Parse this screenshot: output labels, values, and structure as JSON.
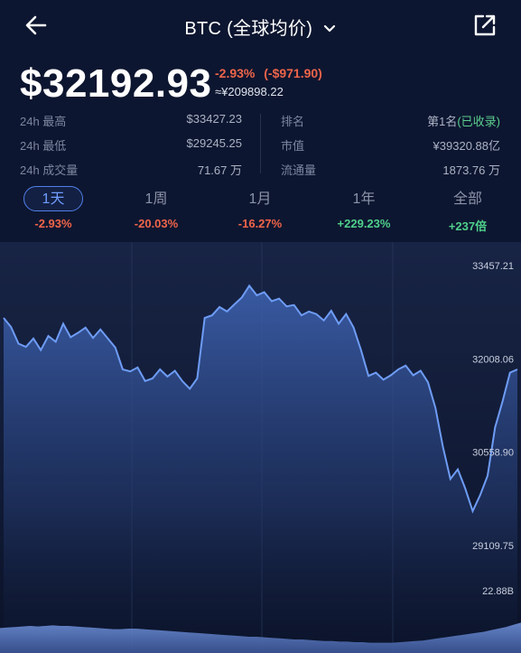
{
  "header": {
    "title": "BTC (全球均价)",
    "back_icon": "arrow-left-icon",
    "dropdown_icon": "chevron-down-icon",
    "share_icon": "external-link-icon"
  },
  "price": {
    "value": "$32192.93",
    "change_pct": "-2.93%",
    "change_abs": "(-$971.90)",
    "cny": "≈¥209898.22"
  },
  "stats": {
    "left": [
      {
        "label": "24h 最高",
        "value": "$33427.23"
      },
      {
        "label": "24h 最低",
        "value": "$29245.25"
      },
      {
        "label": "24h 成交量",
        "value": "71.67 万"
      }
    ],
    "right": [
      {
        "label": "排名",
        "value": "第1名",
        "extra": "(已收录)"
      },
      {
        "label": "市值",
        "value": "¥39320.88亿"
      },
      {
        "label": "流通量",
        "value": "1873.76 万"
      }
    ]
  },
  "tabs": [
    {
      "label": "1天",
      "change": "-2.93%",
      "direction": "neg",
      "active": true
    },
    {
      "label": "1周",
      "change": "-20.03%",
      "direction": "neg",
      "active": false
    },
    {
      "label": "1月",
      "change": "-16.27%",
      "direction": "neg",
      "active": false
    },
    {
      "label": "1年",
      "change": "+229.23%",
      "direction": "pos",
      "active": false
    },
    {
      "label": "全部",
      "change": "+237倍",
      "direction": "pos",
      "active": false
    }
  ],
  "colors": {
    "background": "#0d1630",
    "negative": "#f0654a",
    "positive": "#4fd08b",
    "accent": "#4f7fe8",
    "line": "#6e9cf5"
  },
  "chart_data": {
    "type": "area",
    "y_ticks": [
      "33457.21",
      "32008.06",
      "30558.90",
      "29109.75"
    ],
    "ylim": [
      29109.75,
      33457.21
    ],
    "volume_label": "22.88B",
    "series": [
      {
        "values": [
          32700,
          32560,
          32300,
          32250,
          32380,
          32200,
          32420,
          32330,
          32610,
          32400,
          32470,
          32550,
          32390,
          32520,
          32380,
          32240,
          31900,
          31870,
          31930,
          31720,
          31760,
          31900,
          31790,
          31880,
          31720,
          31600,
          31760,
          32700,
          32740,
          32870,
          32800,
          32910,
          33020,
          33200,
          33050,
          33100,
          32960,
          33000,
          32880,
          32900,
          32740,
          32800,
          32760,
          32660,
          32810,
          32610,
          32760,
          32550,
          32200,
          31800,
          31850,
          31740,
          31810,
          31900,
          31960,
          31810,
          31880,
          31700,
          31300,
          30700,
          30200,
          30350,
          30050,
          29700,
          29950,
          30250,
          31000,
          31400,
          31850,
          31900
        ]
      }
    ],
    "volume": [
      0.46,
      0.47,
      0.48,
      0.49,
      0.5,
      0.49,
      0.5,
      0.51,
      0.5,
      0.5,
      0.49,
      0.48,
      0.47,
      0.46,
      0.45,
      0.44,
      0.44,
      0.45,
      0.45,
      0.44,
      0.43,
      0.42,
      0.41,
      0.4,
      0.39,
      0.38,
      0.37,
      0.36,
      0.35,
      0.34,
      0.33,
      0.32,
      0.31,
      0.3,
      0.3,
      0.29,
      0.28,
      0.27,
      0.26,
      0.25,
      0.25,
      0.24,
      0.23,
      0.22,
      0.22,
      0.21,
      0.21,
      0.2,
      0.2,
      0.19,
      0.19,
      0.19,
      0.19,
      0.2,
      0.21,
      0.22,
      0.23,
      0.25,
      0.27,
      0.29,
      0.31,
      0.33,
      0.35,
      0.37,
      0.39,
      0.42,
      0.45,
      0.48,
      0.52,
      0.56
    ]
  }
}
